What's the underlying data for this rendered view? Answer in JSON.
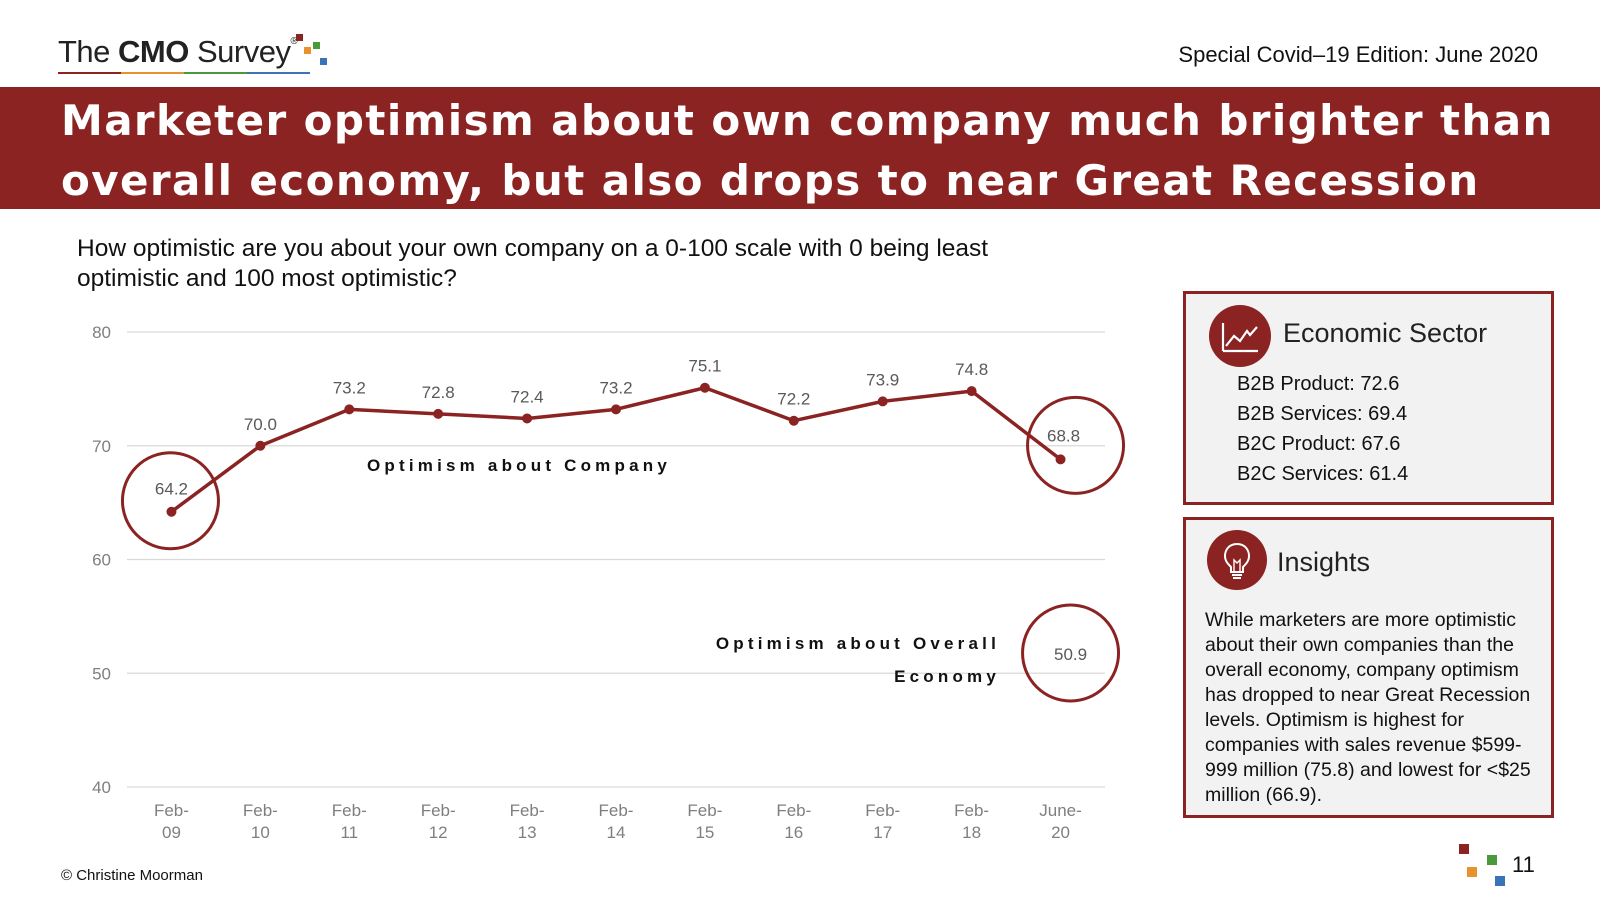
{
  "header": {
    "logo": {
      "prefix": "The",
      "bold": "CMO",
      "suffix": "Survey",
      "reg": "®"
    },
    "edition": "Special Covid–19 Edition: June 2020"
  },
  "title": "Marketer optimism about own company much brighter than overall economy, but also drops to near Great Recession levels",
  "question": "How optimistic are you about your own company on a 0-100 scale with 0 being least optimistic and 100 most optimistic?",
  "colors": {
    "accent": "#8b2322",
    "grid": "#d9d9d9",
    "axis_text": "#7f7f7f",
    "panel_bg": "#f2f2f2",
    "logo_squares": [
      "#8b2322",
      "#e8912d",
      "#4a9a3c",
      "#3b73b9"
    ]
  },
  "chart_data": {
    "type": "line",
    "categories": [
      "Feb-09",
      "Feb-10",
      "Feb-11",
      "Feb-12",
      "Feb-13",
      "Feb-14",
      "Feb-15",
      "Feb-16",
      "Feb-17",
      "Feb-18",
      "June-20"
    ],
    "category_labels": [
      [
        "Feb-",
        "09"
      ],
      [
        "Feb-",
        "10"
      ],
      [
        "Feb-",
        "11"
      ],
      [
        "Feb-",
        "12"
      ],
      [
        "Feb-",
        "13"
      ],
      [
        "Feb-",
        "14"
      ],
      [
        "Feb-",
        "15"
      ],
      [
        "Feb-",
        "16"
      ],
      [
        "Feb-",
        "17"
      ],
      [
        "Feb-",
        "18"
      ],
      [
        "June-",
        "20"
      ]
    ],
    "series": [
      {
        "name": "Optimism about Company",
        "values": [
          64.2,
          70.0,
          73.2,
          72.8,
          72.4,
          73.2,
          75.1,
          72.2,
          73.9,
          74.8,
          68.8
        ],
        "labels": [
          "64.2",
          "70.0",
          "73.2",
          "72.8",
          "72.4",
          "73.2",
          "75.1",
          "72.2",
          "73.9",
          "74.8",
          "68.8"
        ]
      }
    ],
    "overall_economy": {
      "label_lines": [
        "Optimism about Overall",
        "Economy"
      ],
      "value": 50.9,
      "value_label": "50.9",
      "category": "June-20"
    },
    "highlighted_points": [
      "Feb-09",
      "June-20"
    ],
    "yticks": [
      40,
      50,
      60,
      70,
      80
    ],
    "ylim": [
      40,
      80
    ],
    "title": "",
    "xlabel": "",
    "ylabel": "",
    "grid": true,
    "legend": "none"
  },
  "sector_panel": {
    "icon": "line-chart-icon",
    "title": "Economic Sector",
    "items": [
      "B2B Product: 72.6",
      "B2B Services: 69.4",
      "B2C Product: 67.6",
      "B2C Services: 61.4"
    ]
  },
  "insights_panel": {
    "icon": "lightbulb-icon",
    "title": "Insights",
    "text": "While marketers are more optimistic about their own companies than the overall economy, company optimism has dropped to near Great Recession levels. Optimism is highest for companies with sales revenue $599-999 million (75.8) and lowest for <$25 million (66.9)."
  },
  "footer": {
    "copyright": "© Christine Moorman",
    "page": "11"
  }
}
